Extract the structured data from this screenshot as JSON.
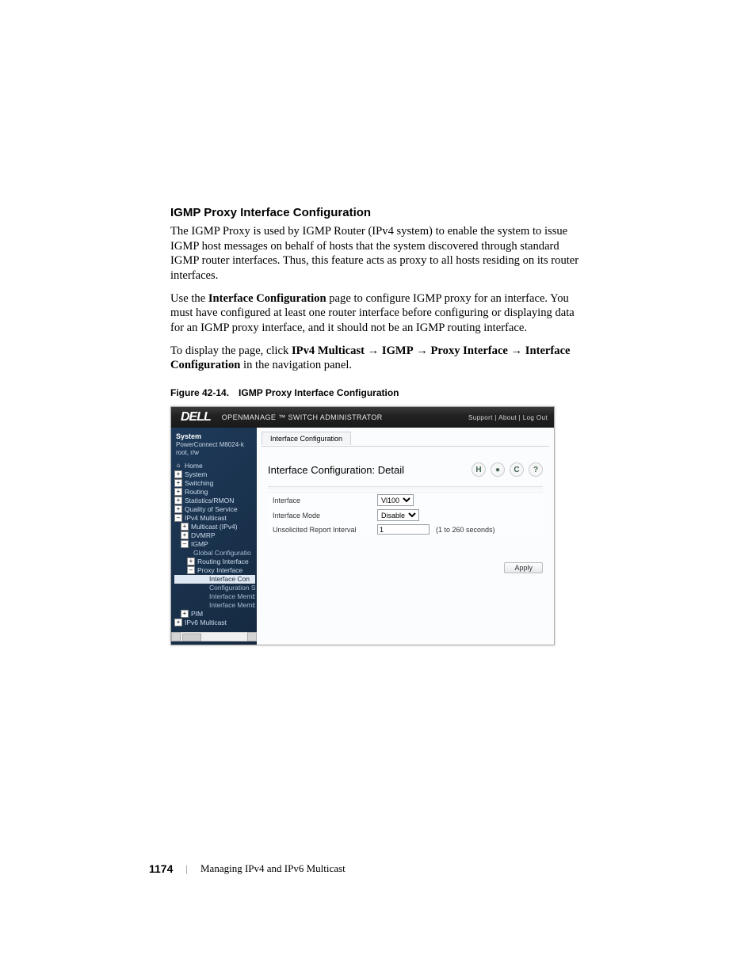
{
  "section_heading": "IGMP Proxy Interface Configuration",
  "para1": "The IGMP Proxy is used by IGMP Router (IPv4 system) to enable the system to issue IGMP host messages on behalf of hosts that the system discovered through standard IGMP router interfaces. Thus, this feature acts as proxy to all hosts residing on its router interfaces.",
  "para2_pre": "Use the ",
  "para2_bold": "Interface Configuration",
  "para2_post": " page to configure IGMP proxy for an interface. You must have configured at least one router interface before configuring or displaying data for an IGMP proxy interface, and it should not be an IGMP routing interface.",
  "para3_pre": "To display the page, click ",
  "nav1": "IPv4 Multicast",
  "nav2": "IGMP",
  "nav3": "Proxy Interface",
  "nav4": "Interface Configuration",
  "para3_post": " in the navigation panel.",
  "figure_caption": "Figure 42-14. IGMP Proxy Interface Configuration",
  "shot": {
    "logo": "DELL",
    "header_title": "OPENMANAGE ™ SWITCH ADMINISTRATOR",
    "header_links": "Support  |  About  |  Log Out",
    "sidebar_sys": "System",
    "sidebar_sub1": "PowerConnect M8024-k",
    "sidebar_sub2": "root, r/w",
    "tree": {
      "home": "Home",
      "system": "System",
      "switching": "Switching",
      "routing": "Routing",
      "stats": "Statistics/RMON",
      "qos": "Quality of Service",
      "v4m": "IPv4 Multicast",
      "mcast": "Multicast (IPv4)",
      "dvmrp": "DVMRP",
      "igmp": "IGMP",
      "global": "Global Configuratio",
      "rintf": "Routing Interface",
      "proxy": "Proxy Interface",
      "ifcon": "Interface Con",
      "cfgs": "Configuration S",
      "memb1": "Interface Memb",
      "memb2": "Interface Memb",
      "pim": "PIM",
      "v6m": "IPv6 Multicast"
    },
    "crumb": "Interface Configuration",
    "detail_title": "Interface Configuration: Detail",
    "icon_save": "H",
    "icon_print": "●",
    "icon_refresh": "C",
    "icon_help": "?",
    "rows": {
      "interface_label": "Interface",
      "interface_value": "Vl100",
      "mode_label": "Interface Mode",
      "mode_value": "Disable",
      "report_label": "Unsolicited Report Interval",
      "report_value": "1",
      "report_hint": "(1 to 260 seconds)"
    },
    "apply": "Apply"
  },
  "footer_page": "1174",
  "footer_sep": "|",
  "footer_chapter": "Managing IPv4 and IPv6 Multicast"
}
